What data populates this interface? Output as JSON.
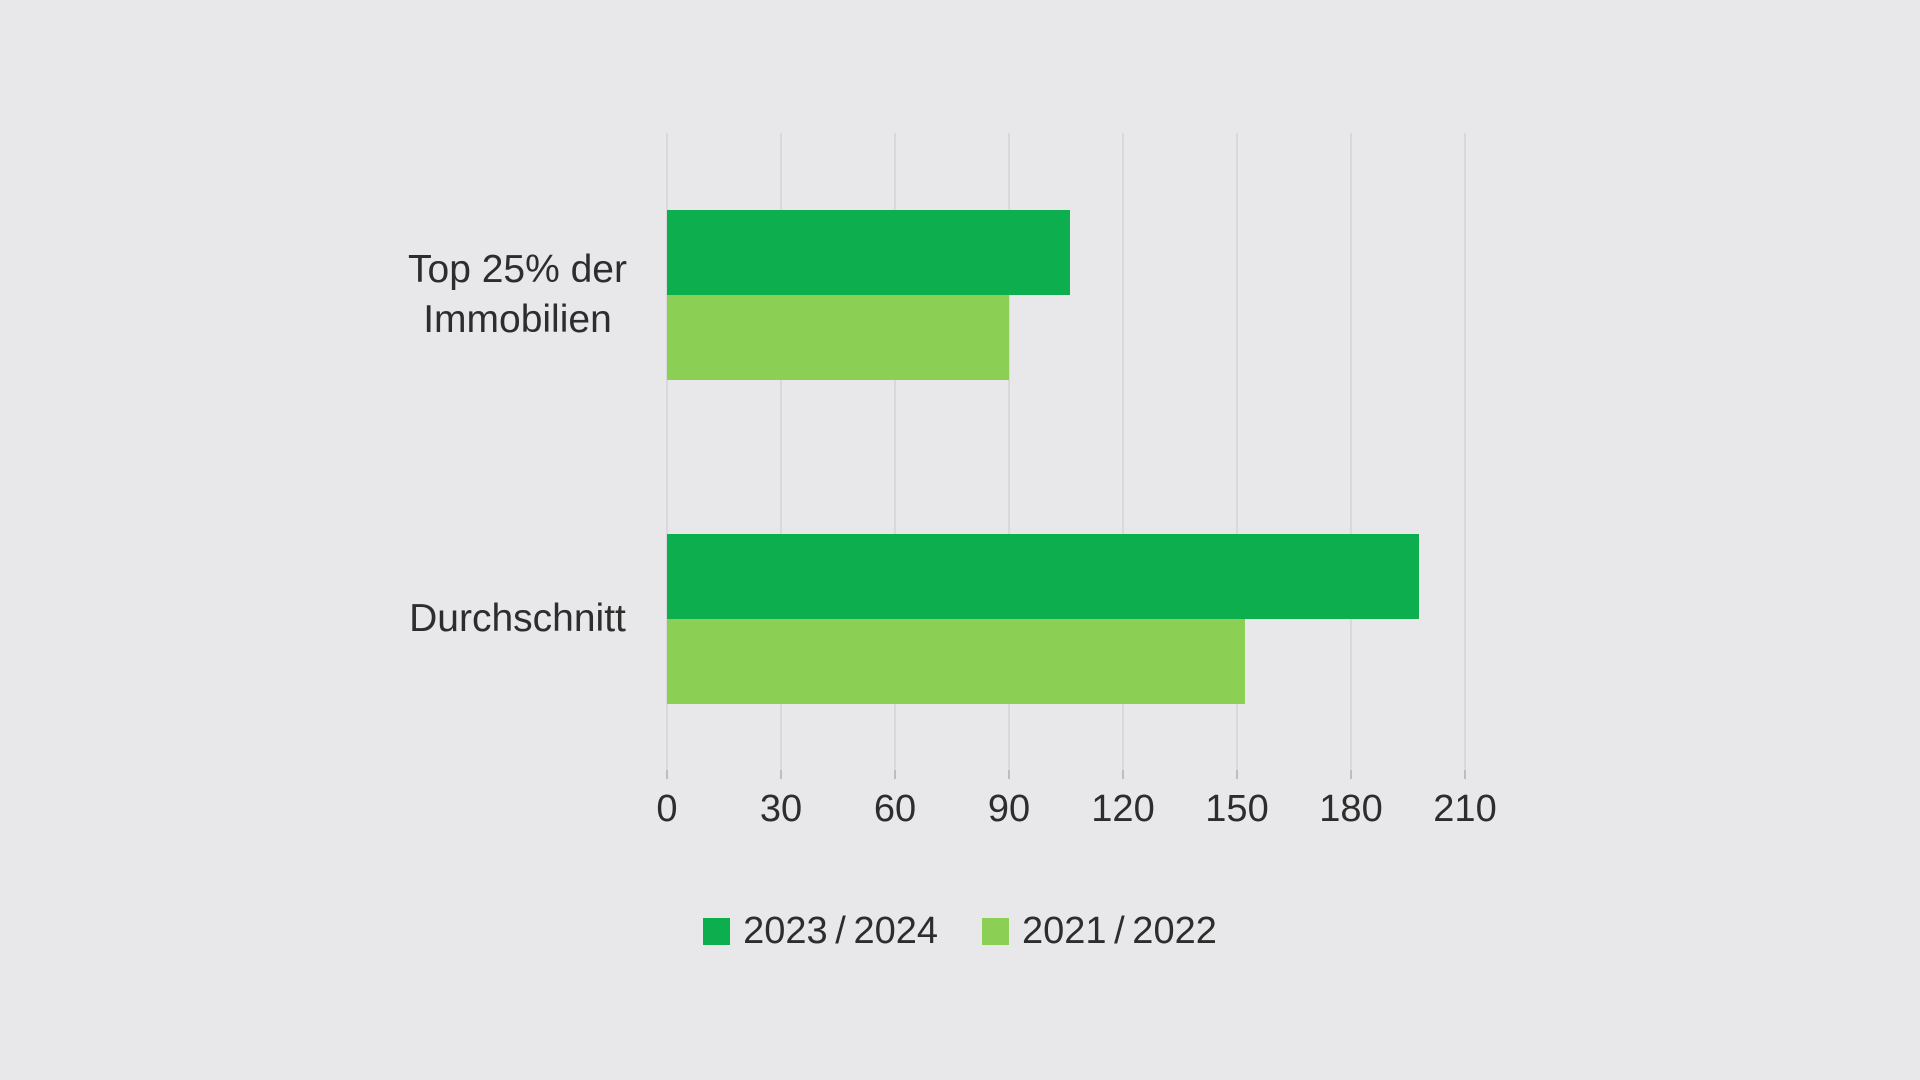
{
  "chart_data": {
    "type": "bar",
    "orientation": "horizontal",
    "title": "",
    "categories": [
      "Top 25% der Immobilien",
      "Durchschnitt"
    ],
    "category_label_lines": [
      [
        "Top 25% der",
        "Immobilien"
      ],
      [
        "Durchschnitt"
      ]
    ],
    "series": [
      {
        "name": "2023 / 2024",
        "color": "#0cae4d",
        "values": [
          106,
          198
        ]
      },
      {
        "name": "2021 / 2022",
        "color": "#8ccf55",
        "values": [
          90,
          152
        ]
      }
    ],
    "xlim": [
      0,
      210
    ],
    "xticks": [
      0,
      30,
      60,
      90,
      120,
      150,
      180,
      210
    ],
    "grid": "vertical-only",
    "legend_position": "bottom-center"
  },
  "style": {
    "background_color": "#e8e8ea",
    "gridline_color": "#d9d9db",
    "tick_color": "#bdbdbf",
    "text_color": "#2d2d2d"
  }
}
